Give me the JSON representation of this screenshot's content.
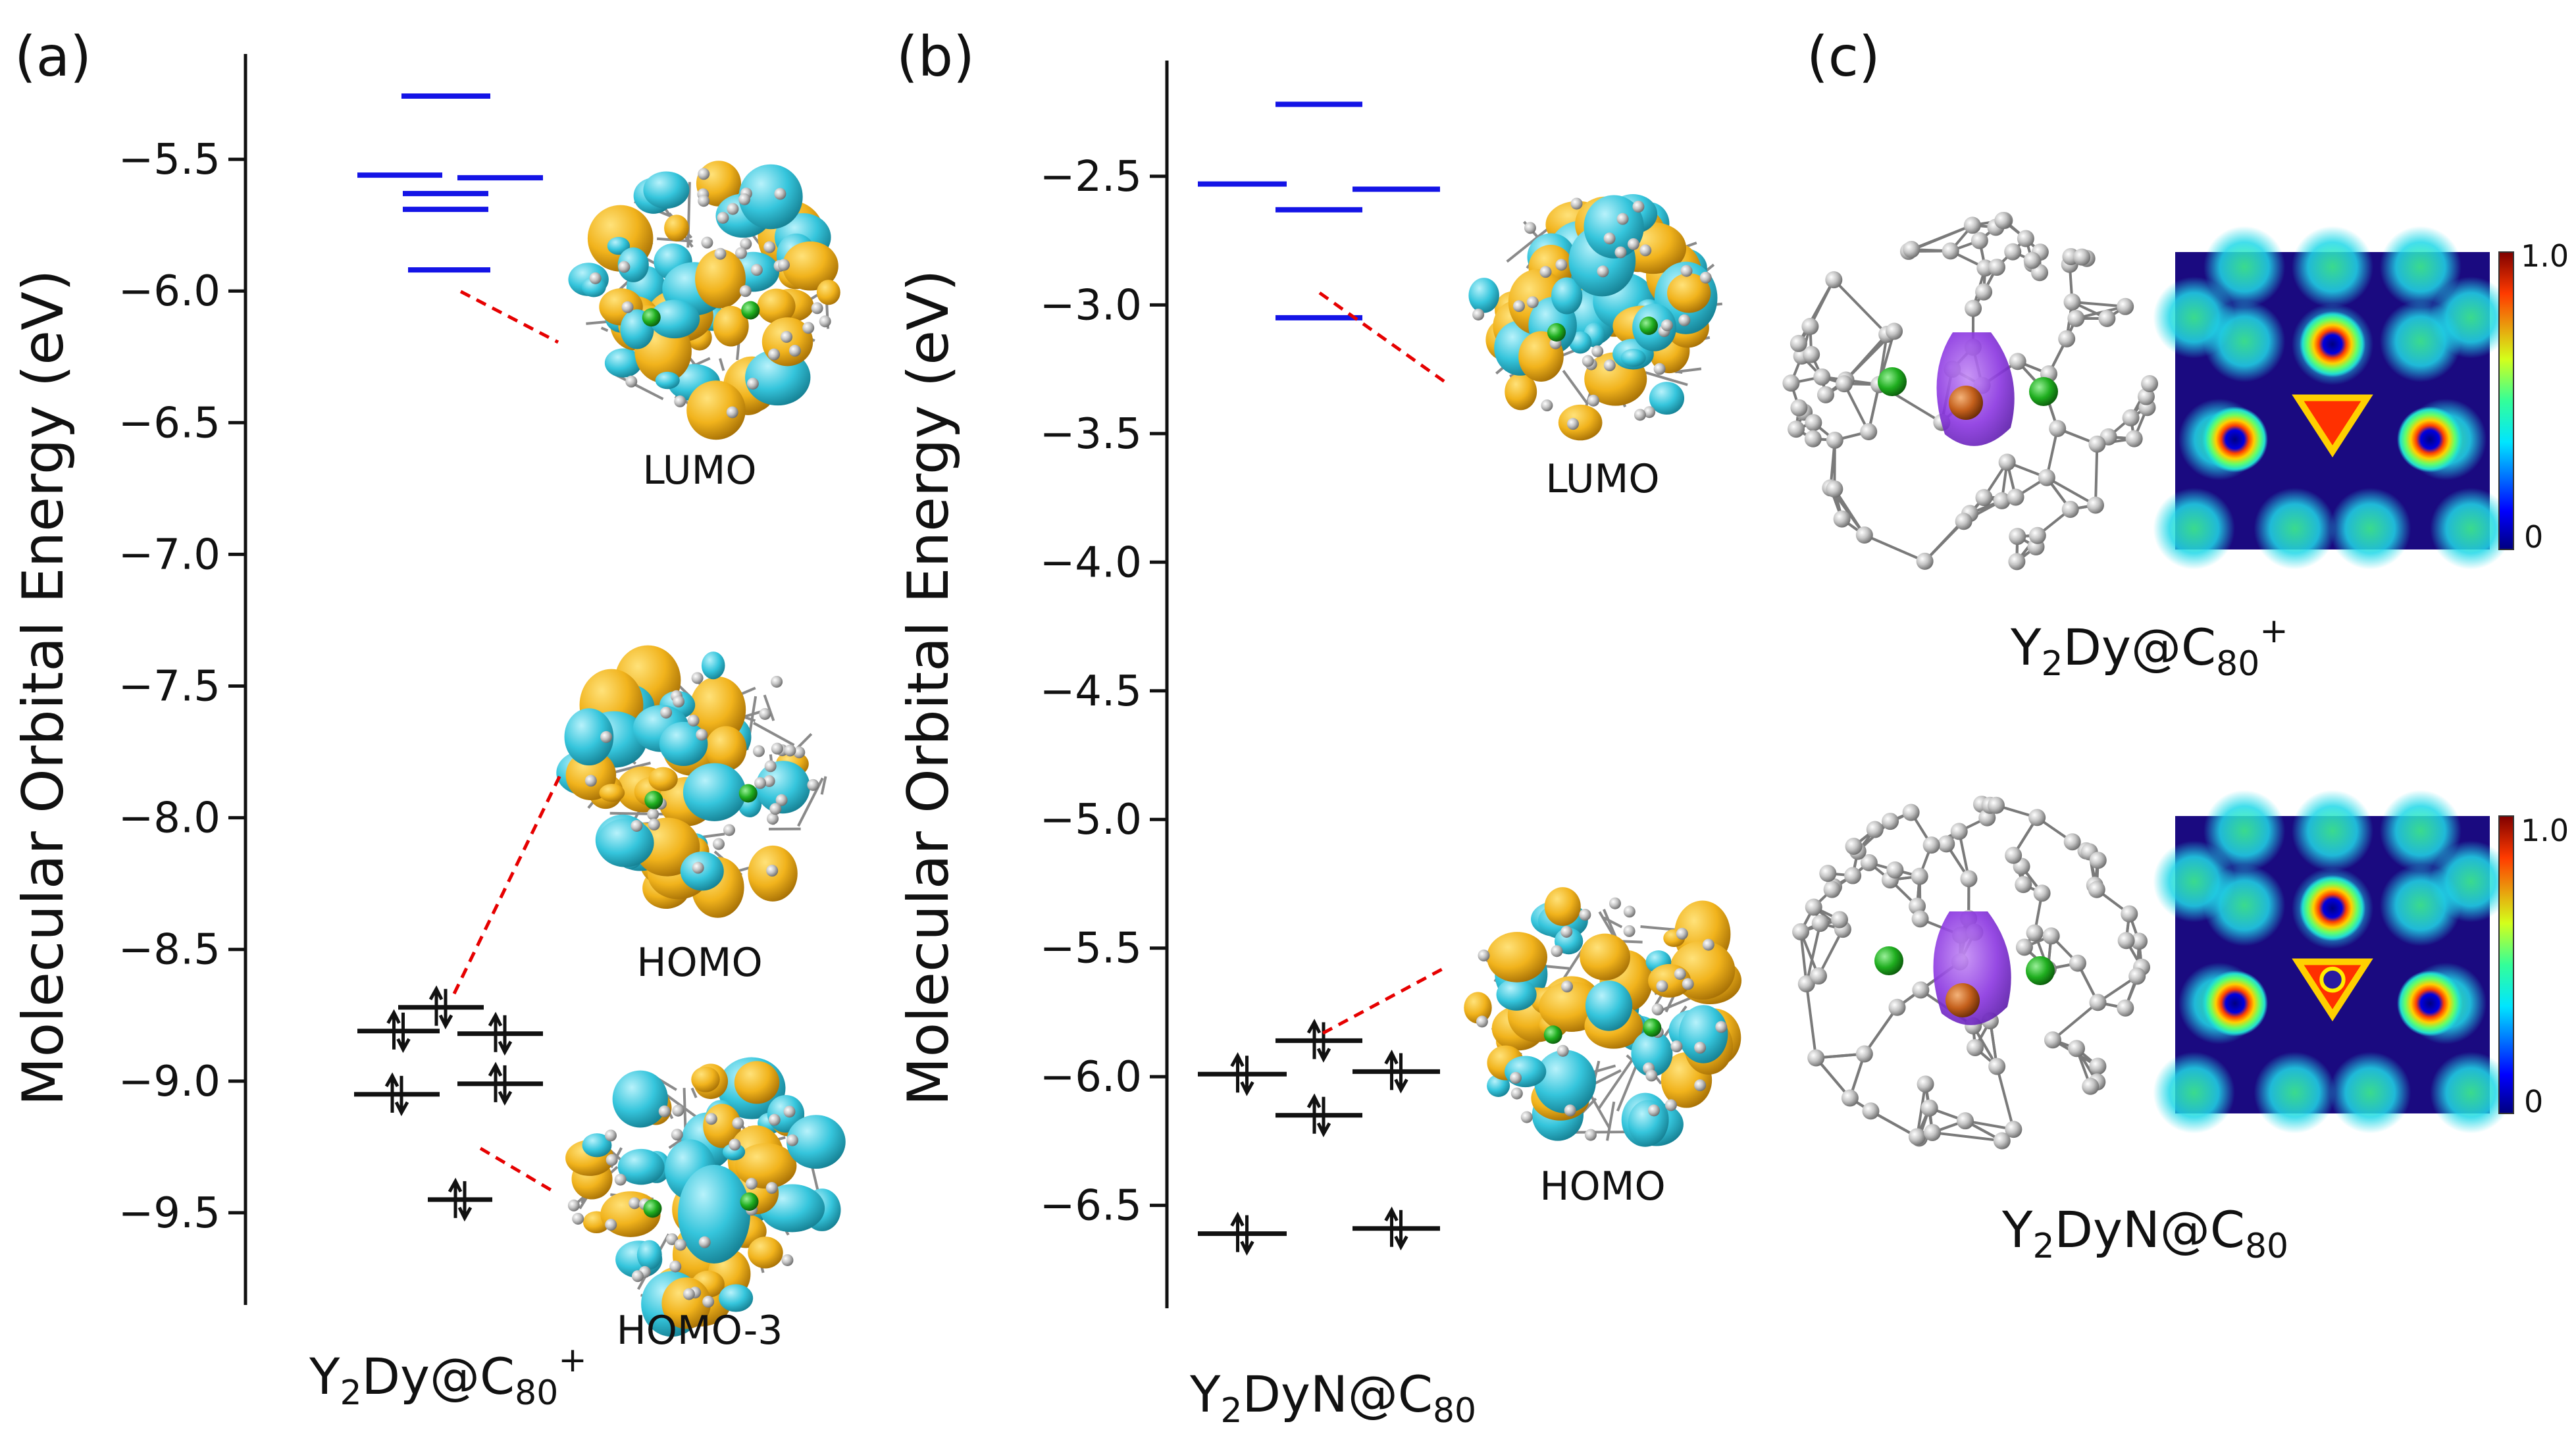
{
  "figure": {
    "panels": [
      "(a)",
      "(b)",
      "(c)"
    ]
  },
  "chart_data": [
    {
      "type": "energy_level_diagram",
      "panel": "(a)",
      "ylabel": "Molecular Orbital Energy (eV)",
      "ylim": [
        -9.85,
        -5.1
      ],
      "yticks": [
        -5.5,
        -6.0,
        -6.5,
        -7.0,
        -7.5,
        -8.0,
        -8.5,
        -9.0,
        -9.5
      ],
      "tick_labels": [
        "−5.5",
        "−6.0",
        "−6.5",
        "−7.0",
        "−7.5",
        "−8.0",
        "−8.5",
        "−9.0",
        "−9.5"
      ],
      "unoccupied_color": "#1414e6",
      "occupied_color": "#111111",
      "unoccupied_levels": [
        -5.26,
        -5.56,
        -5.57,
        -5.63,
        -5.69,
        -5.92
      ],
      "occupied_levels": [
        -8.72,
        -8.81,
        -8.82,
        -9.01,
        -9.05,
        -9.45
      ],
      "orbital_labels": [
        "LUMO",
        "HOMO",
        "HOMO-3"
      ],
      "xlabel": {
        "main": "Y",
        "s1": "2",
        "mid": "Dy@C",
        "s2": "80",
        "sup": "+"
      }
    },
    {
      "type": "energy_level_diagram",
      "panel": "(b)",
      "ylabel": "Molecular Orbital Energy (eV)",
      "ylim": [
        -6.9,
        -2.05
      ],
      "yticks": [
        -2.5,
        -3.0,
        -3.5,
        -4.0,
        -4.5,
        -5.0,
        -5.5,
        -6.0,
        -6.5
      ],
      "tick_labels": [
        "−2.5",
        "−3.0",
        "−3.5",
        "−4.0",
        "−4.5",
        "−5.0",
        "−5.5",
        "−6.0",
        "−6.5"
      ],
      "unoccupied_color": "#1414e6",
      "occupied_color": "#111111",
      "unoccupied_levels": [
        -2.22,
        -2.53,
        -2.55,
        -2.63,
        -3.05
      ],
      "occupied_levels": [
        -5.86,
        -5.98,
        -5.99,
        -6.15,
        -6.59,
        -6.61
      ],
      "orbital_labels": [
        "LUMO",
        "HOMO"
      ],
      "xlabel": {
        "main": "Y",
        "s1": "2",
        "mid": "DyN@C",
        "s2": "80",
        "sup": ""
      }
    }
  ],
  "panel_c": {
    "colorbar": {
      "max_label": "1.0",
      "min_label": "0",
      "range": [
        0,
        1.0
      ]
    },
    "molecules": [
      {
        "main": "Y",
        "s1": "2",
        "mid": "Dy@C",
        "s2": "80",
        "sup": "+"
      },
      {
        "main": "Y",
        "s1": "2",
        "mid": "DyN@C",
        "s2": "80",
        "sup": ""
      }
    ]
  },
  "colors": {
    "lobe_yellow": "#f2b41e",
    "lobe_cyan": "#38c6dc",
    "atom_grey": "#c8c8c8",
    "atom_green": "#22b322",
    "atom_orange": "#c8641e",
    "spin_purple": "#8f3fe0",
    "connector_red": "#e60000"
  }
}
